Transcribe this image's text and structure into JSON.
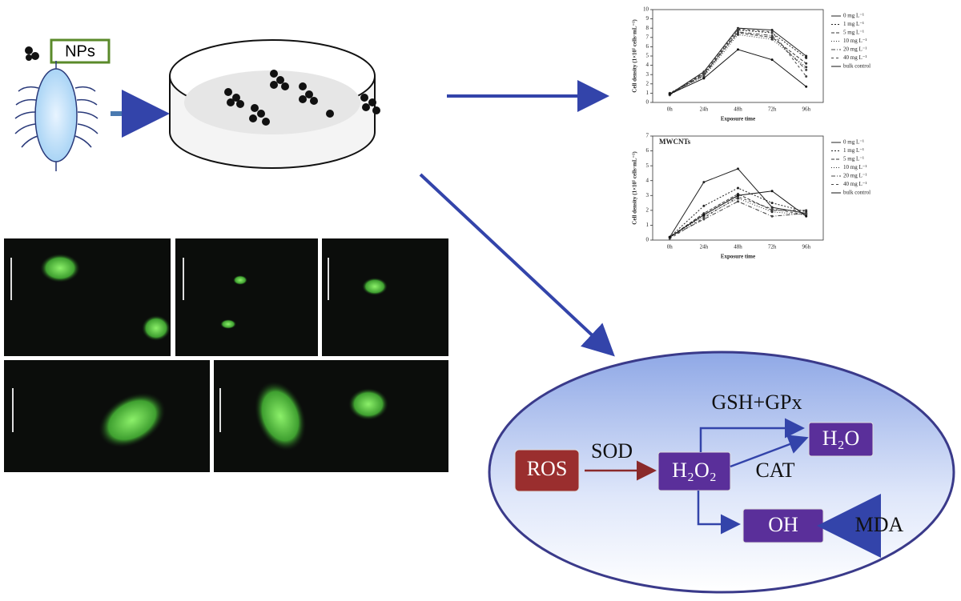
{
  "labels": {
    "nps": "NPs"
  },
  "chart_data": [
    {
      "type": "line",
      "ylabel": "Cell density (1×10⁵ cells·mL⁻¹)",
      "xlabel": "Exposure time",
      "categories": [
        "0h",
        "24h",
        "48h",
        "72h",
        "96h"
      ],
      "ylim": [
        0,
        10
      ],
      "yticks": [
        0,
        1,
        2,
        3,
        4,
        5,
        6,
        7,
        8,
        9,
        10
      ],
      "series": [
        {
          "name": "0 mg L⁻¹",
          "color": "#222222",
          "values": [
            0.9,
            3.3,
            8.0,
            7.8,
            5.0
          ]
        },
        {
          "name": "1 mg L⁻¹",
          "color": "#222222",
          "values": [
            1.0,
            3.0,
            7.8,
            7.5,
            4.8
          ]
        },
        {
          "name": "5 mg L⁻¹",
          "color": "#333333",
          "values": [
            0.8,
            3.1,
            7.5,
            7.0,
            4.2
          ]
        },
        {
          "name": "10 mg L⁻¹",
          "color": "#333333",
          "values": [
            1.0,
            2.8,
            7.3,
            6.8,
            3.8
          ]
        },
        {
          "name": "20 mg L⁻¹",
          "color": "#444444",
          "values": [
            0.9,
            2.9,
            7.6,
            7.2,
            3.5
          ]
        },
        {
          "name": "40 mg L⁻¹",
          "color": "#444444",
          "values": [
            0.8,
            3.2,
            7.9,
            7.6,
            2.8
          ]
        },
        {
          "name": "bulk control",
          "color": "#111111",
          "values": [
            0.9,
            2.6,
            5.7,
            4.6,
            1.7
          ]
        }
      ]
    },
    {
      "type": "line",
      "annotation": "MWCNTs",
      "ylabel": "Cell density (1×10⁵ cells·mL⁻¹)",
      "xlabel": "Exposure time",
      "categories": [
        "0h",
        "24h",
        "48h",
        "72h",
        "96h"
      ],
      "ylim": [
        0,
        7
      ],
      "yticks": [
        0,
        1,
        2,
        3,
        4,
        5,
        6,
        7
      ],
      "series": [
        {
          "name": "0 mg L⁻¹",
          "color": "#222222",
          "values": [
            0.2,
            3.9,
            4.8,
            2.2,
            1.8
          ]
        },
        {
          "name": "1 mg L⁻¹",
          "color": "#222222",
          "values": [
            0.2,
            2.3,
            3.5,
            2.5,
            1.9
          ]
        },
        {
          "name": "5 mg L⁻¹",
          "color": "#333333",
          "values": [
            0.2,
            1.8,
            3.1,
            2.0,
            2.0
          ]
        },
        {
          "name": "10 mg L⁻¹",
          "color": "#333333",
          "values": [
            0.2,
            1.6,
            2.8,
            1.9,
            1.7
          ]
        },
        {
          "name": "20 mg L⁻¹",
          "color": "#444444",
          "values": [
            0.2,
            1.4,
            2.6,
            1.6,
            1.8
          ]
        },
        {
          "name": "40 mg L⁻¹",
          "color": "#444444",
          "values": [
            0.1,
            1.5,
            2.9,
            2.1,
            1.7
          ]
        },
        {
          "name": "bulk control",
          "color": "#111111",
          "values": [
            0.2,
            1.7,
            3.0,
            3.3,
            1.6
          ]
        }
      ]
    }
  ],
  "pathway": {
    "ros": "ROS",
    "sod": "SOD",
    "h2o2": "H₂O₂",
    "gsh_gpx": "GSH+GPx",
    "h2o": "H₂O",
    "cat": "CAT",
    "oh": "OH",
    "mda": "MDA"
  }
}
